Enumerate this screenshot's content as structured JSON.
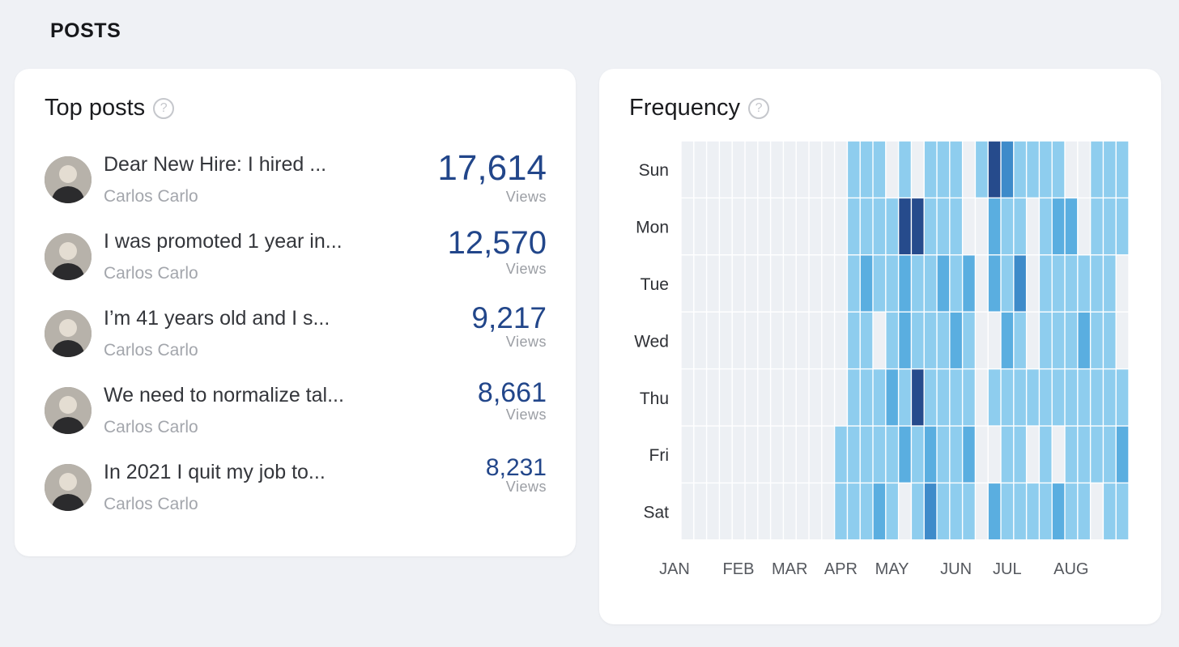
{
  "section_title": "POSTS",
  "top_posts": {
    "title": "Top posts",
    "help": "?",
    "posts": [
      {
        "title": "Dear New Hire: I hired ...",
        "author": "Carlos Carlo",
        "views": "17,614",
        "views_label": "Views"
      },
      {
        "title": "I was promoted 1 year in...",
        "author": "Carlos Carlo",
        "views": "12,570",
        "views_label": "Views"
      },
      {
        "title": "I’m 41 years old and I s...",
        "author": "Carlos Carlo",
        "views": "9,217",
        "views_label": "Views"
      },
      {
        "title": "We need to normalize tal...",
        "author": "Carlos Carlo",
        "views": "8,661",
        "views_label": "Views"
      },
      {
        "title": "In 2021 I quit my job to...",
        "author": "Carlos Carlo",
        "views": "8,231",
        "views_label": "Views"
      }
    ]
  },
  "frequency": {
    "title": "Frequency",
    "help": "?"
  },
  "chart_data": {
    "type": "heatmap",
    "title": "Frequency",
    "rows": [
      "Sun",
      "Mon",
      "Tue",
      "Wed",
      "Thu",
      "Fri",
      "Sat"
    ],
    "month_labels": [
      "JAN",
      "FEB",
      "MAR",
      "APR",
      "MAY",
      "JUN",
      "JUL",
      "AUG"
    ],
    "month_label_week_index": [
      0,
      5,
      9,
      13,
      17,
      22,
      26,
      31
    ],
    "scale": "0 = no posts, 1 = light, 2 = medium, 3 = strong, 4 = darkest",
    "colors": [
      "#edf0f4",
      "#8ecdee",
      "#5aaee0",
      "#3e8bca",
      "#264b8c"
    ],
    "weeks": 35,
    "values": [
      [
        0,
        0,
        0,
        0,
        0,
        0,
        0,
        0,
        0,
        0,
        0,
        0,
        0,
        1,
        1,
        1,
        0,
        1,
        0,
        1,
        1,
        1,
        0,
        1,
        4,
        3,
        1,
        1,
        1,
        1,
        0,
        0,
        1,
        1,
        1
      ],
      [
        0,
        0,
        0,
        0,
        0,
        0,
        0,
        0,
        0,
        0,
        0,
        0,
        0,
        1,
        1,
        1,
        1,
        4,
        4,
        1,
        1,
        1,
        0,
        0,
        2,
        1,
        1,
        0,
        1,
        2,
        2,
        0,
        1,
        1,
        1
      ],
      [
        0,
        0,
        0,
        0,
        0,
        0,
        0,
        0,
        0,
        0,
        0,
        0,
        0,
        1,
        2,
        1,
        1,
        2,
        1,
        1,
        2,
        1,
        2,
        0,
        2,
        1,
        3,
        0,
        1,
        1,
        1,
        1,
        1,
        1,
        0
      ],
      [
        0,
        0,
        0,
        0,
        0,
        0,
        0,
        0,
        0,
        0,
        0,
        0,
        0,
        1,
        1,
        0,
        1,
        2,
        1,
        1,
        1,
        2,
        1,
        0,
        0,
        2,
        1,
        0,
        1,
        1,
        1,
        2,
        1,
        1,
        0
      ],
      [
        0,
        0,
        0,
        0,
        0,
        0,
        0,
        0,
        0,
        0,
        0,
        0,
        0,
        1,
        1,
        1,
        2,
        1,
        4,
        1,
        1,
        1,
        1,
        0,
        1,
        1,
        1,
        1,
        1,
        1,
        1,
        1,
        1,
        1,
        1
      ],
      [
        0,
        0,
        0,
        0,
        0,
        0,
        0,
        0,
        0,
        0,
        0,
        0,
        1,
        1,
        1,
        1,
        1,
        2,
        1,
        2,
        1,
        1,
        2,
        0,
        0,
        1,
        1,
        0,
        1,
        0,
        1,
        1,
        1,
        1,
        2
      ],
      [
        0,
        0,
        0,
        0,
        0,
        0,
        0,
        0,
        0,
        0,
        0,
        0,
        1,
        1,
        1,
        2,
        1,
        0,
        1,
        3,
        1,
        1,
        1,
        0,
        2,
        1,
        1,
        1,
        1,
        2,
        1,
        1,
        0,
        1,
        1
      ]
    ]
  }
}
